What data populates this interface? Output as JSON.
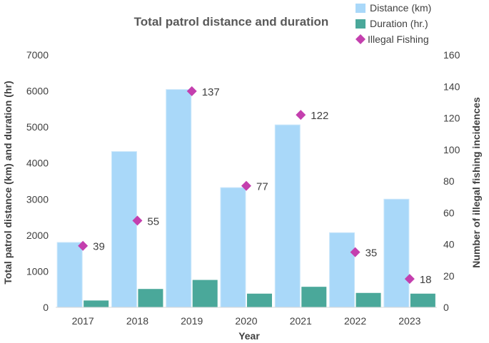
{
  "chart_data": {
    "type": "bar",
    "title": "Total patrol distance and duration",
    "xlabel": "Year",
    "ylabel": "Total patrol distance (km) and duration (hr)",
    "y2label": "Number of illegal fishing incidences",
    "categories": [
      "2017",
      "2018",
      "2019",
      "2020",
      "2021",
      "2022",
      "2023"
    ],
    "ylim": [
      0,
      7000
    ],
    "yticks": [
      0,
      1000,
      2000,
      3000,
      4000,
      5000,
      6000,
      7000
    ],
    "y2lim": [
      0,
      160
    ],
    "y2ticks": [
      0,
      20,
      40,
      60,
      80,
      100,
      120,
      140,
      160
    ],
    "legend_position": "top-right",
    "series": [
      {
        "name": "Distance (km)",
        "type": "bar",
        "axis": "left",
        "color": "#a9d8f9",
        "values": [
          1800,
          4320,
          6040,
          3320,
          5060,
          2070,
          3000
        ]
      },
      {
        "name": "Duration (hr.)",
        "type": "bar",
        "axis": "left",
        "color": "#4aa89a",
        "values": [
          190,
          510,
          760,
          380,
          570,
          400,
          380
        ]
      },
      {
        "name": "Illegal Fishing",
        "type": "scatter",
        "axis": "right",
        "color": "#c43fae",
        "values": [
          39,
          55,
          137,
          77,
          122,
          35,
          18
        ],
        "labels": [
          "39",
          "55",
          "137",
          "77",
          "122",
          "35",
          "18"
        ]
      }
    ]
  }
}
